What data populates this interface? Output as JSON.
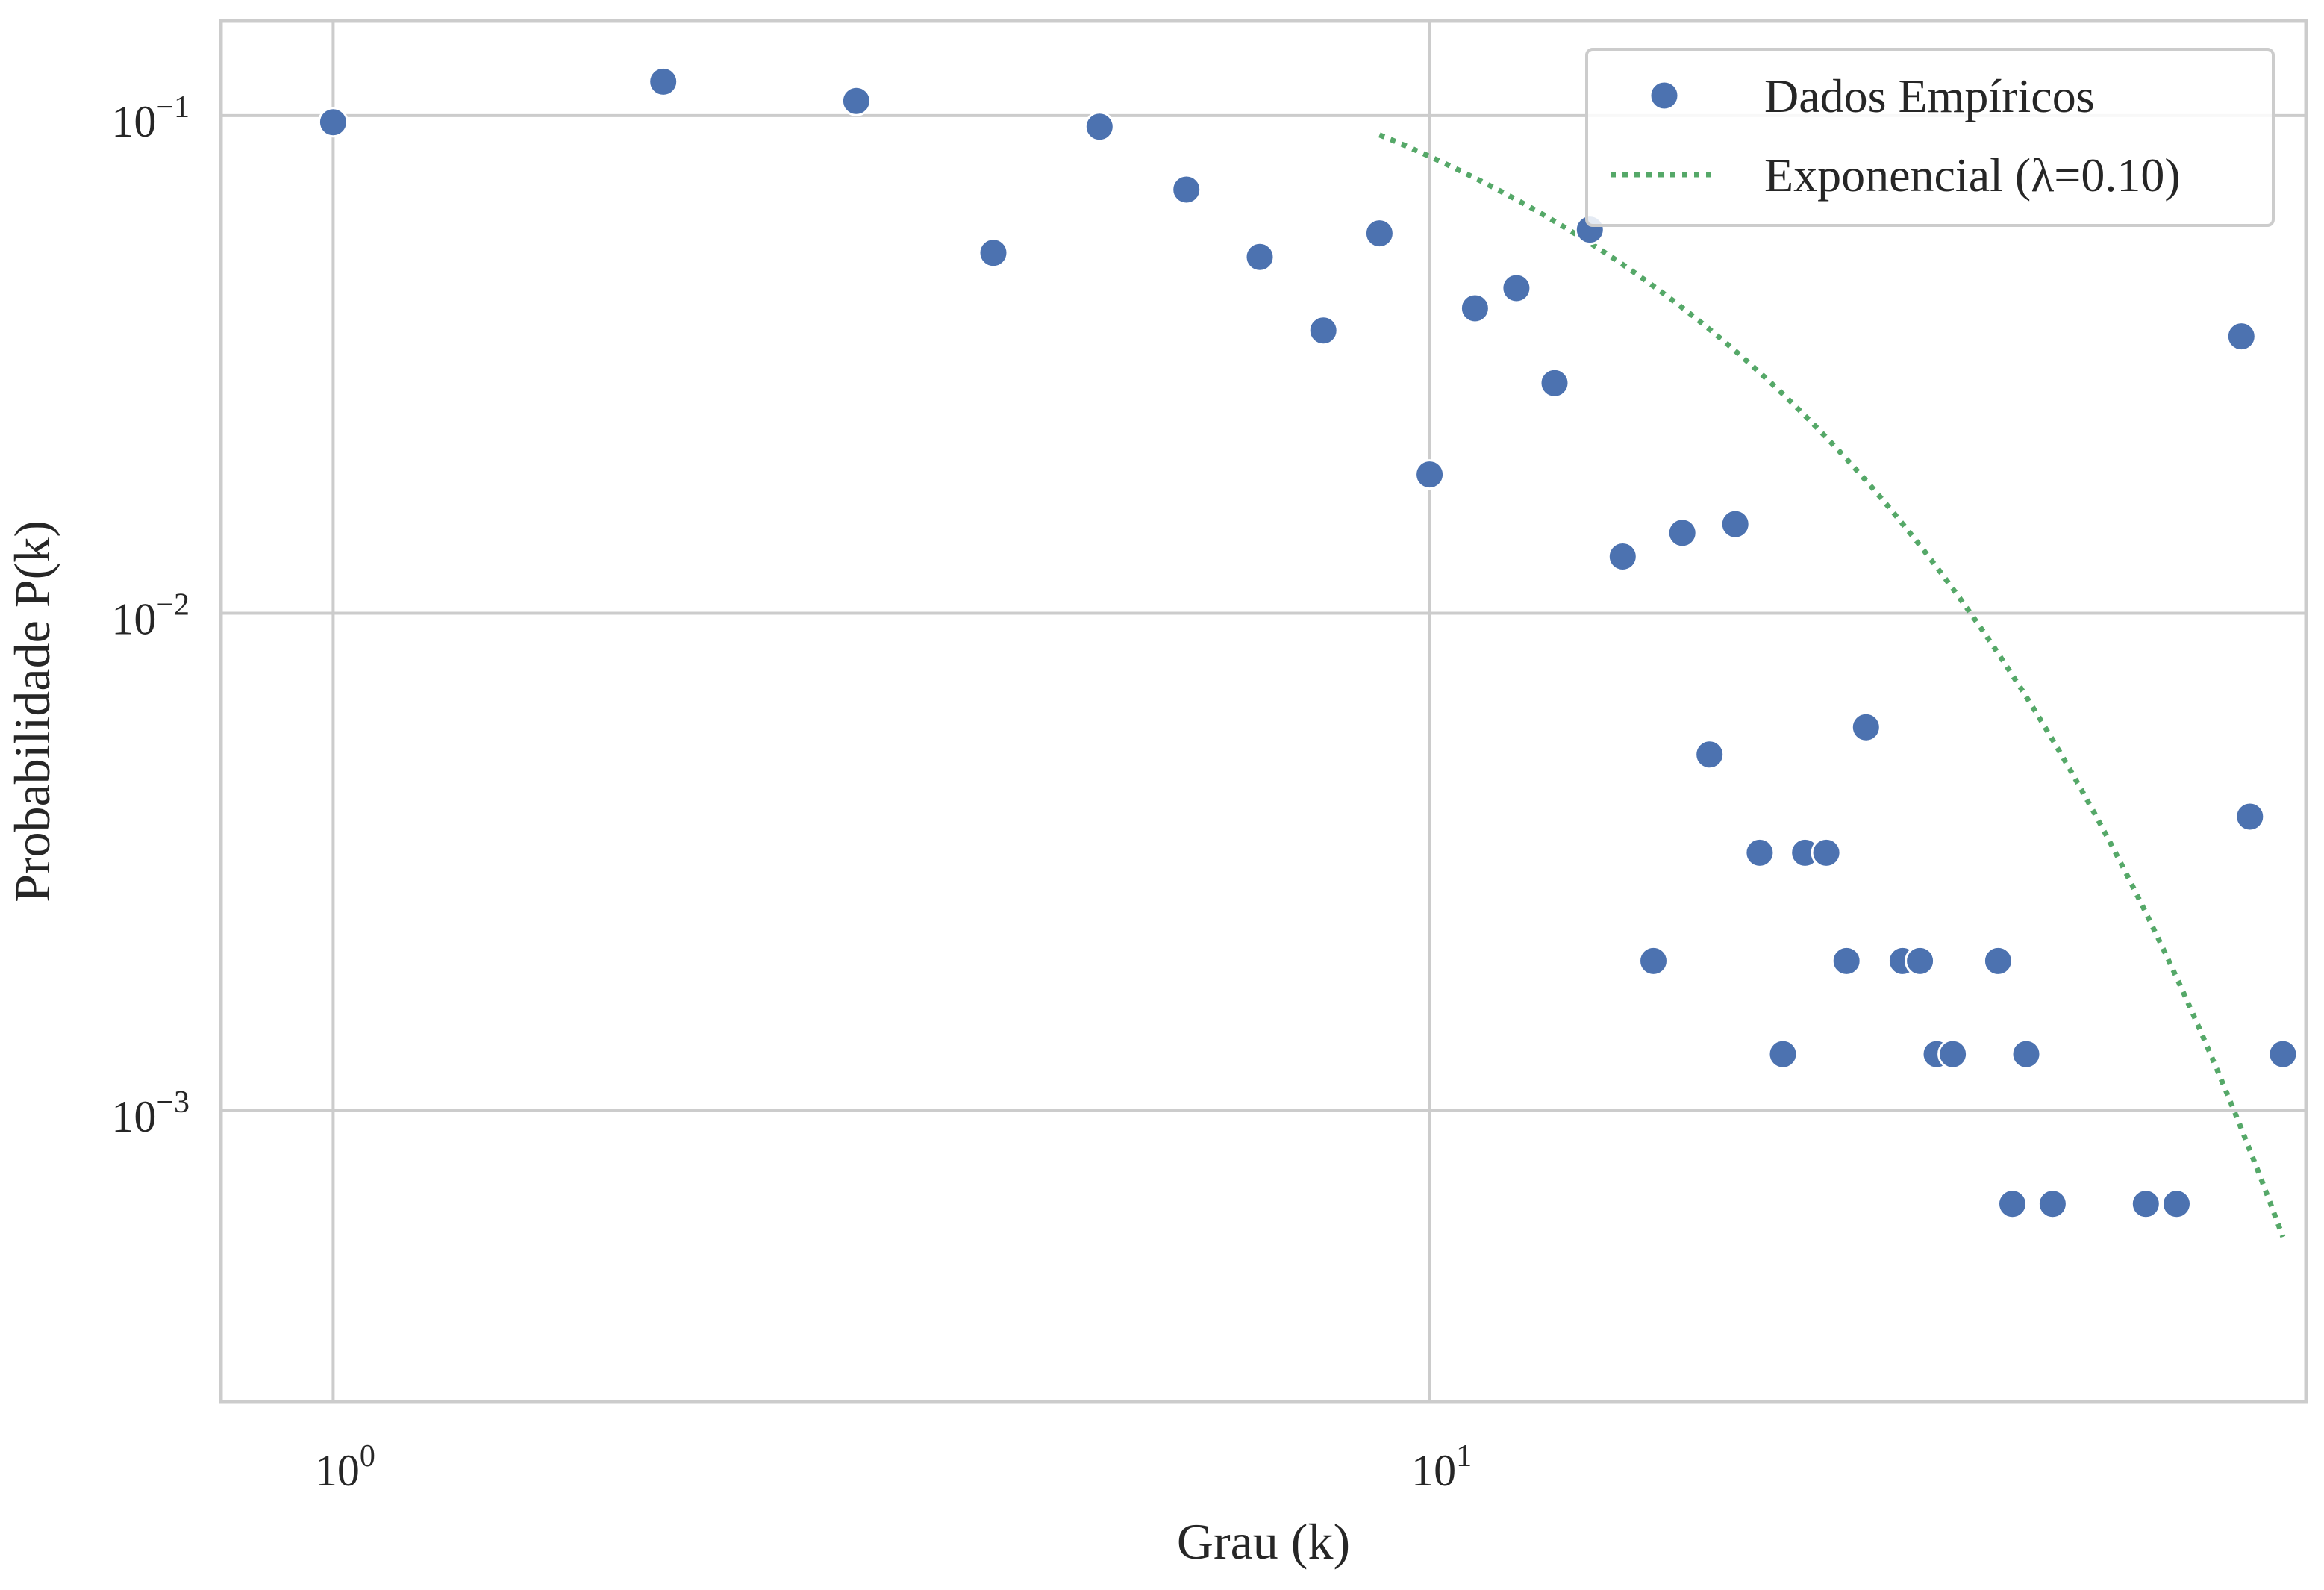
{
  "chart_data": {
    "type": "scatter",
    "xscale": "log",
    "yscale": "log",
    "xlim": [
      0.79,
      63
    ],
    "ylim": [
      0.00026,
      0.155
    ],
    "xlabel": "Grau (k)",
    "ylabel": "Probabilidade P(k)",
    "grid": true,
    "legend_position": "top-right",
    "x_ticks": [
      {
        "value": 1,
        "base": "10",
        "exp": "0"
      },
      {
        "value": 10,
        "base": "10",
        "exp": "1"
      }
    ],
    "y_ticks": [
      {
        "value": 0.001,
        "base": "10",
        "exp": "−3"
      },
      {
        "value": 0.01,
        "base": "10",
        "exp": "−2"
      },
      {
        "value": 0.1,
        "base": "10",
        "exp": "−1"
      }
    ],
    "series": [
      {
        "name": "Dados Empíricos",
        "type": "scatter",
        "color": "#4c72b0",
        "points": [
          [
            1,
            0.097
          ],
          [
            2,
            0.117
          ],
          [
            3,
            0.107
          ],
          [
            4,
            0.053
          ],
          [
            5,
            0.095
          ],
          [
            6,
            0.071
          ],
          [
            7,
            0.052
          ],
          [
            8,
            0.037
          ],
          [
            9,
            0.058
          ],
          [
            10,
            0.019
          ],
          [
            11,
            0.041
          ],
          [
            12,
            0.045
          ],
          [
            13,
            0.029
          ],
          [
            14,
            0.059
          ],
          [
            15,
            0.013
          ],
          [
            16,
            0.002
          ],
          [
            17,
            0.0145
          ],
          [
            18,
            0.0052
          ],
          [
            19,
            0.0151
          ],
          [
            20,
            0.0033
          ],
          [
            21,
            0.0013
          ],
          [
            22,
            0.0033
          ],
          [
            23,
            0.0033
          ],
          [
            24,
            0.002
          ],
          [
            25,
            0.0059
          ],
          [
            27,
            0.002
          ],
          [
            28,
            0.002
          ],
          [
            29,
            0.0013
          ],
          [
            30,
            0.0013
          ],
          [
            33,
            0.002
          ],
          [
            34,
            0.00065
          ],
          [
            35,
            0.0013
          ],
          [
            37,
            0.00065
          ],
          [
            45,
            0.00065
          ],
          [
            48,
            0.00065
          ],
          [
            55,
            0.036
          ],
          [
            56,
            0.0039
          ],
          [
            60,
            0.0013
          ]
        ]
      },
      {
        "name": "Exponencial (λ=0.10)",
        "type": "line",
        "style": "dotted",
        "color": "#55a868",
        "lambda": 0.1,
        "amplitude": 0.225,
        "x_range": [
          9,
          60
        ]
      }
    ]
  }
}
